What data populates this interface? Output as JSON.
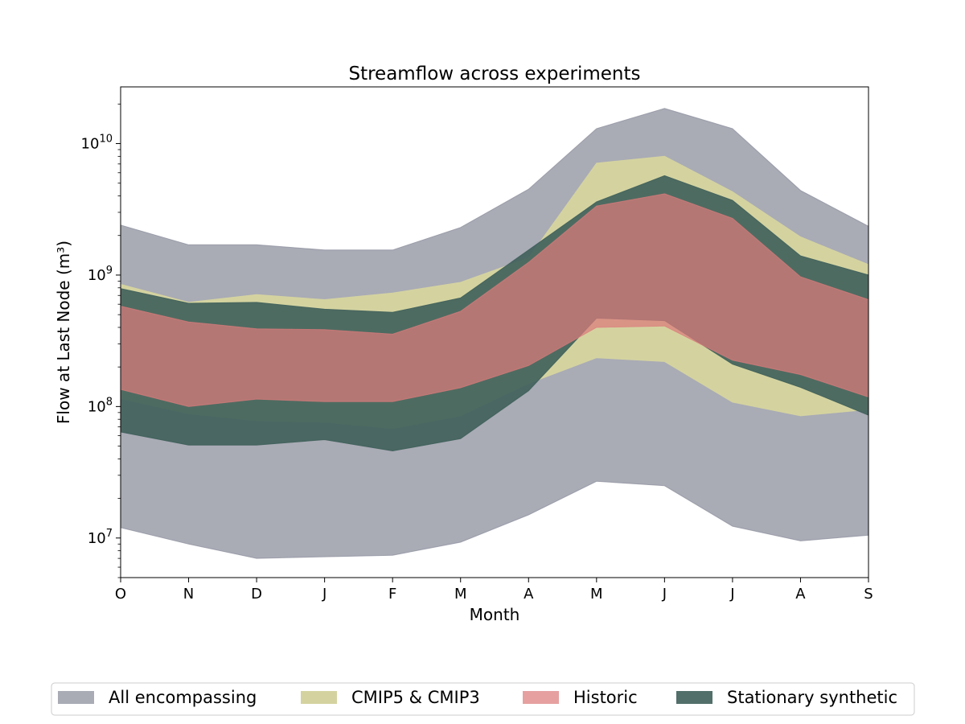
{
  "chart_data": {
    "type": "area",
    "title": "Streamflow across experiments",
    "xlabel": "Month",
    "ylabel": "Flow at Last Node (m³)",
    "yscale": "log",
    "ylim": [
      5000000,
      27000000000
    ],
    "yticks": [
      10000000,
      100000000,
      1000000000,
      10000000000
    ],
    "ytick_labels": [
      {
        "base": "10",
        "exp": "7"
      },
      {
        "base": "10",
        "exp": "8"
      },
      {
        "base": "10",
        "exp": "9"
      },
      {
        "base": "10",
        "exp": "10"
      }
    ],
    "categories": [
      "O",
      "N",
      "D",
      "J",
      "F",
      "M",
      "A",
      "M",
      "J",
      "J",
      "A",
      "S"
    ],
    "legend_position": "bottom (below plot, 4 columns)",
    "grid": false,
    "series": [
      {
        "name": "All encompassing",
        "color": "#8c8f9c",
        "opacity": 0.75,
        "lower": [
          12000000,
          9000000,
          7000000,
          7200000,
          7400000,
          9300000,
          15000000,
          27000000,
          25000000,
          12300000,
          9500000,
          10500000
        ],
        "upper": [
          2400000000,
          1700000000,
          1700000000,
          1550000000,
          1550000000,
          2300000000,
          4500000000,
          13000000000,
          18500000000,
          13000000000,
          4400000000,
          2350000000
        ]
      },
      {
        "name": "CMIP5 & CMIP3",
        "color": "#d4d3a0",
        "opacity": 1.0,
        "lower": [
          115000000,
          88000000,
          78000000,
          76000000,
          68000000,
          85000000,
          150000000,
          235000000,
          220000000,
          108000000,
          85000000,
          95000000
        ],
        "upper": [
          850000000,
          620000000,
          710000000,
          650000000,
          730000000,
          880000000,
          1350000000,
          7100000000,
          8000000000,
          4300000000,
          1950000000,
          1200000000
        ]
      },
      {
        "name": "Stationary synthetic",
        "color": "#3f5f5a",
        "opacity": 0.9,
        "lower": [
          64000000,
          51000000,
          51000000,
          56000000,
          46000000,
          57000000,
          132000000,
          470000000,
          450000000,
          210000000,
          140000000,
          86000000
        ],
        "upper": [
          790000000,
          610000000,
          620000000,
          550000000,
          520000000,
          670000000,
          1550000000,
          3600000000,
          5700000000,
          3700000000,
          1400000000,
          1000000000
        ]
      },
      {
        "name": "Historic",
        "color": "#dc7b7b",
        "opacity": 0.72,
        "lower": [
          135000000,
          100000000,
          114000000,
          109000000,
          109000000,
          139000000,
          205000000,
          400000000,
          410000000,
          225000000,
          175000000,
          118000000
        ],
        "upper": [
          580000000,
          440000000,
          390000000,
          385000000,
          355000000,
          530000000,
          1250000000,
          3350000000,
          4150000000,
          2700000000,
          970000000,
          650000000
        ]
      }
    ],
    "legend_order": [
      "All encompassing",
      "CMIP5 & CMIP3",
      "Historic",
      "Stationary synthetic"
    ]
  }
}
